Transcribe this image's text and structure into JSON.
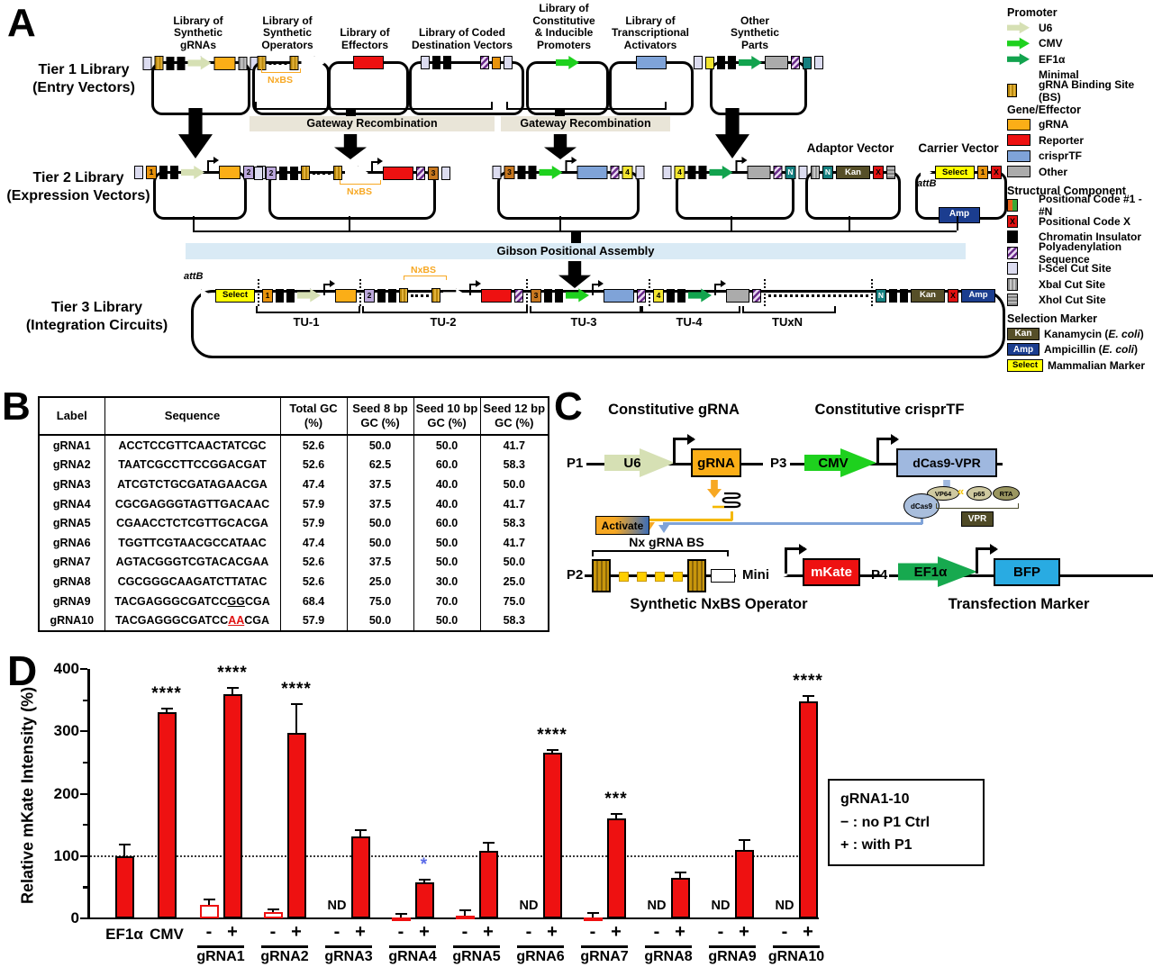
{
  "panelA": {
    "label": "A",
    "tier_labels": [
      "Tier 1 Library\n(Entry Vectors)",
      "Tier 2 Library\n(Expression Vectors)",
      "Tier 3 Library\n(Integration Circuits)"
    ],
    "columns": [
      {
        "title": "Library of\nSynthetic\ngRNAs"
      },
      {
        "title": "Library of\nSynthetic\nOperators"
      },
      {
        "title": "Library of\nEffectors"
      },
      {
        "title": "Library of Coded\nDestination Vectors"
      },
      {
        "title": "Library of\nConstitutive\n& Inducible\nPromoters"
      },
      {
        "title": "Library of\nTranscriptional\nActivators"
      },
      {
        "title": "Other\nSynthetic\nParts"
      }
    ],
    "gateway_label": "Gateway Recombination",
    "gibson_label": "Gibson Positional Assembly",
    "nxbs": "NxBS",
    "adaptor_label": "Adaptor Vector",
    "carrier_label": "Carrier Vector",
    "attb": "attB",
    "carrier_amp": "Amp",
    "tu": [
      "TU-1",
      "TU-2",
      "TU-3",
      "TU-4",
      "TUxN"
    ],
    "constructs": {
      "t1c1": [
        {
          "t": "iscei"
        },
        {
          "t": "bs"
        },
        {
          "t": "ins"
        },
        {
          "t": "ins"
        },
        {
          "t": "u6"
        },
        {
          "t": "grna"
        },
        {
          "t": "xbai"
        },
        {
          "t": "iscei"
        }
      ],
      "t1c2": [
        {
          "t": "bs"
        },
        {
          "t": "dots"
        },
        {
          "t": "bs"
        },
        {
          "t": "min"
        }
      ],
      "t1c3": [
        {
          "t": "rep"
        }
      ],
      "t1c4": [
        {
          "t": "iscei"
        },
        {
          "t": "ins"
        },
        {
          "t": "ins"
        },
        {
          "t": "space"
        },
        {
          "t": "polya"
        },
        {
          "t": "or"
        },
        {
          "t": "iscei"
        }
      ],
      "t1c5": [
        {
          "t": "cmv"
        }
      ],
      "t1c6": [
        {
          "t": "tf"
        }
      ],
      "t1c7": [
        {
          "t": "iscei"
        },
        {
          "t": "yel"
        },
        {
          "t": "ins"
        },
        {
          "t": "ins"
        },
        {
          "t": "ef1a"
        },
        {
          "t": "other"
        },
        {
          "t": "polya"
        },
        {
          "t": "teal"
        },
        {
          "t": "iscei"
        }
      ],
      "t2c1": [
        {
          "t": "iscei"
        },
        {
          "t": "pc1",
          "l": "1"
        },
        {
          "t": "ins"
        },
        {
          "t": "ins"
        },
        {
          "t": "u6"
        },
        {
          "t": "tss"
        },
        {
          "t": "grna"
        },
        {
          "t": "pc2",
          "l": "2"
        },
        {
          "t": "iscei"
        }
      ],
      "t2c2": [
        {
          "t": "iscei"
        },
        {
          "t": "pc2",
          "l": "2"
        },
        {
          "t": "ins"
        },
        {
          "t": "ins"
        },
        {
          "t": "bs"
        },
        {
          "t": "dots"
        },
        {
          "t": "bs"
        },
        {
          "t": "min"
        },
        {
          "t": "tss"
        },
        {
          "t": "rep"
        },
        {
          "t": "polya"
        },
        {
          "t": "pc3",
          "l": "3"
        },
        {
          "t": "iscei"
        }
      ],
      "t2c3": [
        {
          "t": "iscei"
        },
        {
          "t": "pc3",
          "l": "3"
        },
        {
          "t": "ins"
        },
        {
          "t": "ins"
        },
        {
          "t": "cmv"
        },
        {
          "t": "tss"
        },
        {
          "t": "tf"
        },
        {
          "t": "polya"
        },
        {
          "t": "pc4",
          "l": "4"
        },
        {
          "t": "iscei"
        }
      ],
      "t2c4": [
        {
          "t": "iscei"
        },
        {
          "t": "pc4",
          "l": "4"
        },
        {
          "t": "ins"
        },
        {
          "t": "ins"
        },
        {
          "t": "ef1a"
        },
        {
          "t": "tss"
        },
        {
          "t": "other"
        },
        {
          "t": "polya"
        },
        {
          "t": "pcN",
          "l": "N"
        },
        {
          "t": "iscei"
        }
      ],
      "adaptor": [
        {
          "t": "xbai"
        },
        {
          "t": "pcN",
          "l": "N"
        },
        {
          "t": "kan",
          "l": "Kan"
        },
        {
          "t": "pcX",
          "l": "X"
        },
        {
          "t": "xhoi"
        }
      ],
      "carrier": [
        {
          "t": "attb"
        },
        {
          "t": "select",
          "l": "Select"
        },
        {
          "t": "pc1",
          "l": "1"
        },
        {
          "t": "pcX",
          "l": "X"
        }
      ],
      "t3": [
        {
          "t": "attb"
        },
        {
          "t": "select",
          "l": "Select"
        },
        {
          "t": "sep"
        },
        {
          "t": "pc1",
          "l": "1"
        },
        {
          "t": "ins"
        },
        {
          "t": "ins"
        },
        {
          "t": "u6"
        },
        {
          "t": "tss"
        },
        {
          "t": "grna"
        },
        {
          "t": "sep"
        },
        {
          "t": "pc2",
          "l": "2"
        },
        {
          "t": "ins"
        },
        {
          "t": "ins"
        },
        {
          "t": "bs"
        },
        {
          "t": "dots"
        },
        {
          "t": "bs"
        },
        {
          "t": "min"
        },
        {
          "t": "tss"
        },
        {
          "t": "rep"
        },
        {
          "t": "polya"
        },
        {
          "t": "sep"
        },
        {
          "t": "pc3",
          "l": "3"
        },
        {
          "t": "ins"
        },
        {
          "t": "ins"
        },
        {
          "t": "cmv"
        },
        {
          "t": "tss"
        },
        {
          "t": "tf"
        },
        {
          "t": "polya"
        },
        {
          "t": "sep"
        },
        {
          "t": "pc4",
          "l": "4"
        },
        {
          "t": "ins"
        },
        {
          "t": "ins"
        },
        {
          "t": "ef1a"
        },
        {
          "t": "tss"
        },
        {
          "t": "other"
        },
        {
          "t": "polya"
        },
        {
          "t": "sep"
        },
        {
          "t": "ddots"
        },
        {
          "t": "sep"
        },
        {
          "t": "pcN",
          "l": "N"
        },
        {
          "t": "ins"
        },
        {
          "t": "ins"
        },
        {
          "t": "kan",
          "l": "Kan"
        },
        {
          "t": "pcX",
          "l": "X"
        },
        {
          "t": "amp",
          "l": "Amp"
        }
      ]
    }
  },
  "legend": {
    "sections": [
      {
        "title": "Promoter",
        "items": [
          {
            "icon": "u6",
            "pre": "U6",
            "em": "",
            "post": ""
          },
          {
            "icon": "cmv",
            "pre": "CMV",
            "em": "",
            "post": ""
          },
          {
            "icon": "ef1a",
            "pre": "EF1α",
            "em": "",
            "post": ""
          },
          {
            "icon": "minimal",
            "pre": "Minimal",
            "em": "",
            "post": ""
          },
          {
            "icon": "bs",
            "pre": "gRNA Binding Site (BS)",
            "em": "",
            "post": ""
          }
        ]
      },
      {
        "title": "Gene/Effector",
        "items": [
          {
            "icon": "grna",
            "pre": "gRNA",
            "em": "",
            "post": ""
          },
          {
            "icon": "reporter",
            "pre": "Reporter",
            "em": "",
            "post": ""
          },
          {
            "icon": "crisprtf",
            "pre": "crisprTF",
            "em": "",
            "post": ""
          },
          {
            "icon": "other",
            "pre": "Other",
            "em": "",
            "post": ""
          }
        ]
      },
      {
        "title": "Structural Component",
        "items": [
          {
            "icon": "pc1",
            "pre": "Positional Code #1 - #N",
            "em": "",
            "post": ""
          },
          {
            "icon": "pcx",
            "pre": "Positional Code X",
            "em": "",
            "post": "",
            "icon_label": "X"
          },
          {
            "icon": "ins",
            "pre": "Chromatin Insulator",
            "em": "",
            "post": ""
          },
          {
            "icon": "polya",
            "pre": "Polyadenylation Sequence",
            "em": "",
            "post": ""
          },
          {
            "icon": "iscei",
            "pre": "I-SceI Cut Site",
            "em": "",
            "post": ""
          },
          {
            "icon": "xbai",
            "pre": "XbaI Cut Site",
            "em": "",
            "post": ""
          },
          {
            "icon": "xhoi",
            "pre": "XhoI Cut Site",
            "em": "",
            "post": ""
          }
        ]
      },
      {
        "title": "Selection Marker",
        "items": [
          {
            "icon": "kan",
            "pre": "Kanamycin (",
            "em": "E. coli",
            "post": ")",
            "icon_label": "Kan"
          },
          {
            "icon": "amp",
            "pre": "Ampicillin (",
            "em": "E. coli",
            "post": ")",
            "icon_label": "Amp"
          },
          {
            "icon": "select",
            "pre": "Mammalian Marker",
            "em": "",
            "post": "",
            "icon_label": "Select"
          }
        ]
      }
    ]
  },
  "panelB": {
    "label": "B",
    "headers": [
      "Label",
      "Sequence",
      "Total GC\n(%)",
      "Seed 8 bp\nGC (%)",
      "Seed 10 bp\nGC (%)",
      "Seed 12 bp\nGC (%)"
    ],
    "rows": [
      {
        "label": "gRNA1",
        "pre": "ACCTCCGTTCAACTATCGC",
        "mark": "",
        "post": "",
        "mark_style": "",
        "total": "52.6",
        "s8": "50.0",
        "s10": "50.0",
        "s12": "41.7"
      },
      {
        "label": "gRNA2",
        "pre": "TAATCGCCTTCCGGACGAT",
        "mark": "",
        "post": "",
        "mark_style": "",
        "total": "52.6",
        "s8": "62.5",
        "s10": "60.0",
        "s12": "58.3"
      },
      {
        "label": "gRNA3",
        "pre": "ATCGTCTGCGATAGAACGA",
        "mark": "",
        "post": "",
        "mark_style": "",
        "total": "47.4",
        "s8": "37.5",
        "s10": "40.0",
        "s12": "50.0"
      },
      {
        "label": "gRNA4",
        "pre": "CGCGAGGGTAGTTGACAAC",
        "mark": "",
        "post": "",
        "mark_style": "",
        "total": "57.9",
        "s8": "37.5",
        "s10": "40.0",
        "s12": "41.7"
      },
      {
        "label": "gRNA5",
        "pre": "CGAACCTCTCGTTGCACGA",
        "mark": "",
        "post": "",
        "mark_style": "",
        "total": "57.9",
        "s8": "50.0",
        "s10": "60.0",
        "s12": "58.3"
      },
      {
        "label": "gRNA6",
        "pre": "TGGTTCGTAACGCCATAAC",
        "mark": "",
        "post": "",
        "mark_style": "",
        "total": "47.4",
        "s8": "50.0",
        "s10": "50.0",
        "s12": "41.7"
      },
      {
        "label": "gRNA7",
        "pre": "AGTACGGGTCGTACACGAA",
        "mark": "",
        "post": "",
        "mark_style": "",
        "total": "52.6",
        "s8": "37.5",
        "s10": "50.0",
        "s12": "50.0"
      },
      {
        "label": "gRNA8",
        "pre": "CGCGGGCAAGATCTTATAC",
        "mark": "",
        "post": "",
        "mark_style": "",
        "total": "52.6",
        "s8": "25.0",
        "s10": "30.0",
        "s12": "25.0"
      },
      {
        "label": "gRNA9",
        "pre": "TACGAGGGCGATCC",
        "mark": "GG",
        "post": "CGA",
        "mark_style": "mk-gray",
        "total": "68.4",
        "s8": "75.0",
        "s10": "70.0",
        "s12": "75.0"
      },
      {
        "label": "gRNA10",
        "pre": "TACGAGGGCGATCC",
        "mark": "AA",
        "post": "CGA",
        "mark_style": "mk-red",
        "total": "57.9",
        "s8": "50.0",
        "s10": "50.0",
        "s12": "58.3"
      }
    ]
  },
  "panelC": {
    "label": "C",
    "title_grna": "Constitutive gRNA",
    "title_crisprtf": "Constitutive crisprTF",
    "p1": "P1",
    "p2": "P2",
    "p3": "P3",
    "p4": "P4",
    "u6": "U6",
    "grna": "gRNA",
    "cmv": "CMV",
    "dcas9vpr": "dCas9-VPR",
    "dcas9": "dCas9",
    "vp64": "VP64",
    "p65": "p65",
    "rta": "RTA",
    "vpr": "VPR",
    "chevron": "«",
    "activate": "Activate",
    "nx_grna_bs": "Nx gRNA BS",
    "mini": "Mini",
    "mkate": "mKate",
    "ef1a": "EF1α",
    "bfp": "BFP",
    "operator_label": "Synthetic NxBS Operator",
    "marker_label": "Transfection Marker"
  },
  "panelD": {
    "label": "D",
    "chart_data": {
      "type": "bar",
      "ylabel": "Relative mKate Intensity (%)",
      "ylim": [
        0,
        400
      ],
      "yticks": [
        0,
        100,
        200,
        300,
        400
      ],
      "minor_tick_step": 50,
      "reference_line": 100,
      "grid": false,
      "bar_color": "#ee1111",
      "sig_blue_color": "#5b6be8",
      "groups": [
        {
          "label": "EF1α",
          "single": true,
          "bars": [
            {
              "sub": "",
              "value": 100,
              "err": 18,
              "sig": "",
              "style": "filled"
            }
          ]
        },
        {
          "label": "CMV",
          "single": true,
          "bars": [
            {
              "sub": "",
              "value": 330,
              "err": 7,
              "sig": "****",
              "style": "filled"
            }
          ]
        },
        {
          "label": "gRNA1",
          "bars": [
            {
              "sub": "-",
              "value": 22,
              "err": 8,
              "sig": "",
              "style": "open"
            },
            {
              "sub": "+",
              "value": 360,
              "err": 9,
              "sig": "****",
              "style": "filled"
            }
          ]
        },
        {
          "label": "gRNA2",
          "bars": [
            {
              "sub": "-",
              "value": 10,
              "err": 4,
              "sig": "",
              "style": "open"
            },
            {
              "sub": "+",
              "value": 297,
              "err": 46,
              "sig": "****",
              "style": "filled"
            }
          ]
        },
        {
          "label": "gRNA3",
          "bars": [
            {
              "sub": "-",
              "nd": true,
              "nd_label": "ND"
            },
            {
              "sub": "+",
              "value": 132,
              "err": 10,
              "sig": "",
              "style": "filled"
            }
          ]
        },
        {
          "label": "gRNA4",
          "bars": [
            {
              "sub": "-",
              "value": 2,
              "err": 5,
              "sig": "",
              "style": "open"
            },
            {
              "sub": "+",
              "value": 58,
              "err": 4,
              "sig": "*",
              "sig_color": "blue",
              "style": "filled"
            }
          ]
        },
        {
          "label": "gRNA5",
          "bars": [
            {
              "sub": "-",
              "value": 5,
              "err": 8,
              "sig": "",
              "style": "open"
            },
            {
              "sub": "+",
              "value": 108,
              "err": 14,
              "sig": "",
              "style": "filled"
            }
          ]
        },
        {
          "label": "gRNA6",
          "bars": [
            {
              "sub": "-",
              "nd": true,
              "nd_label": "ND"
            },
            {
              "sub": "+",
              "value": 265,
              "err": 5,
              "sig": "****",
              "style": "filled"
            }
          ]
        },
        {
          "label": "gRNA7",
          "bars": [
            {
              "sub": "-",
              "value": 2,
              "err": 6,
              "sig": "",
              "style": "open"
            },
            {
              "sub": "+",
              "value": 160,
              "err": 7,
              "sig": "***",
              "style": "filled"
            }
          ]
        },
        {
          "label": "gRNA8",
          "bars": [
            {
              "sub": "-",
              "nd": true,
              "nd_label": "ND"
            },
            {
              "sub": "+",
              "value": 65,
              "err": 8,
              "sig": "",
              "style": "filled"
            }
          ]
        },
        {
          "label": "gRNA9",
          "bars": [
            {
              "sub": "-",
              "nd": true,
              "nd_label": "ND"
            },
            {
              "sub": "+",
              "value": 110,
              "err": 16,
              "sig": "",
              "style": "filled"
            }
          ]
        },
        {
          "label": "gRNA10",
          "bars": [
            {
              "sub": "-",
              "nd": true,
              "nd_label": "ND"
            },
            {
              "sub": "+",
              "value": 348,
              "err": 9,
              "sig": "****",
              "style": "filled"
            }
          ]
        }
      ],
      "legend_box": [
        "gRNA1-10",
        "− : no P1 Ctrl",
        "+ : with P1"
      ],
      "legend_position": "right"
    }
  }
}
